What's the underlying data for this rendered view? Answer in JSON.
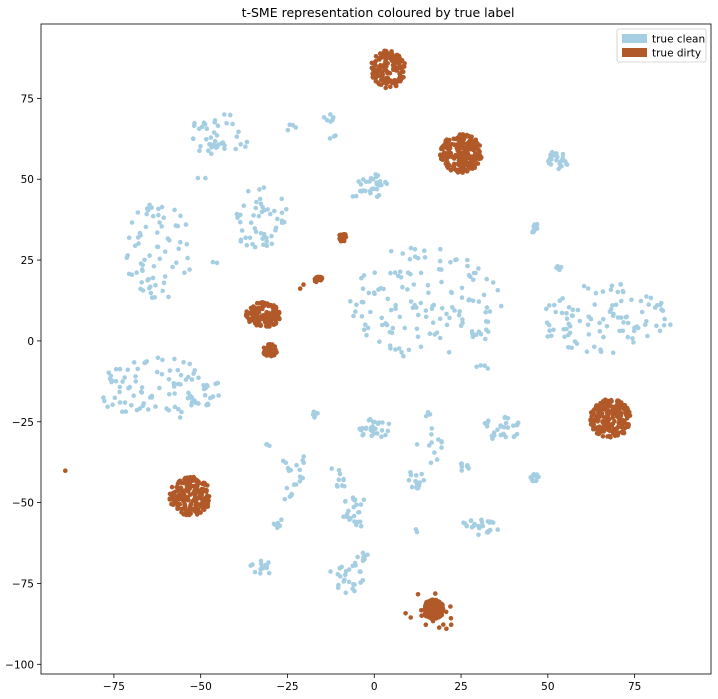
{
  "chart_data": {
    "type": "scatter",
    "title": "t-SME representation coloured by true label",
    "xlabel": "",
    "ylabel": "",
    "xlim": [
      -96,
      97
    ],
    "ylim": [
      -103,
      98
    ],
    "xticks": [
      -75,
      -50,
      -25,
      0,
      25,
      50,
      75
    ],
    "yticks": [
      -100,
      -75,
      -50,
      -25,
      0,
      25,
      50,
      75
    ],
    "grid": false,
    "legend": "top-right",
    "series": [
      {
        "name": "true clean",
        "color": "#a6cee3",
        "clusters": [
          {
            "cx": -45,
            "cy": 64,
            "rx": 8,
            "ry": 7,
            "n": 40
          },
          {
            "cx": -13,
            "cy": 69,
            "rx": 1.5,
            "ry": 1.5,
            "n": 6
          },
          {
            "cx": -24,
            "cy": 66,
            "rx": 2,
            "ry": 1,
            "n": 4
          },
          {
            "cx": -12,
            "cy": 63,
            "rx": 1,
            "ry": 1,
            "n": 3
          },
          {
            "cx": -62,
            "cy": 28,
            "rx": 10,
            "ry": 15,
            "n": 70
          },
          {
            "cx": -33,
            "cy": 38,
            "rx": 8,
            "ry": 10,
            "n": 50
          },
          {
            "cx": 0,
            "cy": 48,
            "rx": 4,
            "ry": 4,
            "n": 25
          },
          {
            "cx": 53,
            "cy": 56,
            "rx": 3,
            "ry": 3,
            "n": 25
          },
          {
            "cx": 46,
            "cy": 35,
            "rx": 1.5,
            "ry": 1.5,
            "n": 12
          },
          {
            "cx": 53,
            "cy": 23,
            "rx": 1.2,
            "ry": 1.2,
            "n": 6
          },
          {
            "cx": 15,
            "cy": 12,
            "rx": 22,
            "ry": 18,
            "n": 140
          },
          {
            "cx": 66,
            "cy": 7,
            "rx": 20,
            "ry": 11,
            "n": 100
          },
          {
            "cx": -62,
            "cy": -15,
            "rx": 18,
            "ry": 10,
            "n": 100
          },
          {
            "cx": 0,
            "cy": -27,
            "rx": 5,
            "ry": 3,
            "n": 30
          },
          {
            "cx": 36,
            "cy": -27,
            "rx": 6,
            "ry": 5,
            "n": 30
          },
          {
            "cx": 16,
            "cy": -30,
            "rx": 4,
            "ry": 8,
            "n": 15
          },
          {
            "cx": -17,
            "cy": -23,
            "rx": 1.2,
            "ry": 1.2,
            "n": 6
          },
          {
            "cx": -23,
            "cy": -42,
            "rx": 4,
            "ry": 10,
            "n": 20
          },
          {
            "cx": -10,
            "cy": -40,
            "rx": 3,
            "ry": 6,
            "n": 10
          },
          {
            "cx": 12,
            "cy": -43,
            "rx": 3,
            "ry": 3,
            "n": 15
          },
          {
            "cx": 26,
            "cy": -39,
            "rx": 1.5,
            "ry": 1.5,
            "n": 8
          },
          {
            "cx": 46,
            "cy": -42,
            "rx": 1.5,
            "ry": 1.5,
            "n": 12
          },
          {
            "cx": -5,
            "cy": -53,
            "rx": 5,
            "ry": 5,
            "n": 25
          },
          {
            "cx": 30,
            "cy": -58,
            "rx": 6,
            "ry": 3,
            "n": 25
          },
          {
            "cx": -28,
            "cy": -56,
            "rx": 1.5,
            "ry": 3,
            "n": 6
          },
          {
            "cx": -32,
            "cy": -70,
            "rx": 4,
            "ry": 2,
            "n": 15
          },
          {
            "cx": -8,
            "cy": -73,
            "rx": 5,
            "ry": 5,
            "n": 25
          },
          {
            "cx": -3,
            "cy": -67,
            "rx": 2,
            "ry": 1.5,
            "n": 8
          },
          {
            "cx": -31,
            "cy": -32,
            "rx": 1,
            "ry": 1,
            "n": 3
          },
          {
            "cx": -50,
            "cy": 50,
            "rx": 1.5,
            "ry": 1.5,
            "n": 2
          },
          {
            "cx": -46,
            "cy": 24,
            "rx": 1,
            "ry": 1,
            "n": 2
          },
          {
            "cx": -37,
            "cy": 61,
            "rx": 1,
            "ry": 1,
            "n": 2
          },
          {
            "cx": -5,
            "cy": 47,
            "rx": 2,
            "ry": 3,
            "n": 6
          },
          {
            "cx": 12,
            "cy": -59,
            "rx": 1,
            "ry": 1,
            "n": 2
          },
          {
            "cx": 32,
            "cy": -8,
            "rx": 3,
            "ry": 1,
            "n": 4
          }
        ]
      },
      {
        "name": "true dirty",
        "color": "#b15928",
        "clusters": [
          {
            "cx": 4,
            "cy": 84,
            "rx": 5,
            "ry": 6,
            "n": 150
          },
          {
            "cx": 25,
            "cy": 58,
            "rx": 6,
            "ry": 6,
            "n": 200
          },
          {
            "cx": -32,
            "cy": 8,
            "rx": 5,
            "ry": 4,
            "n": 150
          },
          {
            "cx": -30,
            "cy": -3,
            "rx": 2,
            "ry": 2,
            "n": 40
          },
          {
            "cx": -9,
            "cy": 32,
            "rx": 1.3,
            "ry": 1.3,
            "n": 25
          },
          {
            "cx": -16,
            "cy": 19,
            "rx": 1.2,
            "ry": 1.2,
            "n": 25
          },
          {
            "cx": -21,
            "cy": 17,
            "rx": 1,
            "ry": 1,
            "n": 2
          },
          {
            "cx": 68,
            "cy": -24,
            "rx": 6,
            "ry": 6,
            "n": 200
          },
          {
            "cx": -53,
            "cy": -48,
            "rx": 6,
            "ry": 6,
            "n": 200
          },
          {
            "cx": 17,
            "cy": -83,
            "rx": 3,
            "ry": 3,
            "n": 220
          },
          {
            "cx": 17,
            "cy": -84,
            "rx": 8,
            "ry": 7,
            "n": 18
          },
          {
            "cx": -89,
            "cy": -40,
            "rx": 0.2,
            "ry": 0.2,
            "n": 1
          }
        ]
      }
    ]
  }
}
